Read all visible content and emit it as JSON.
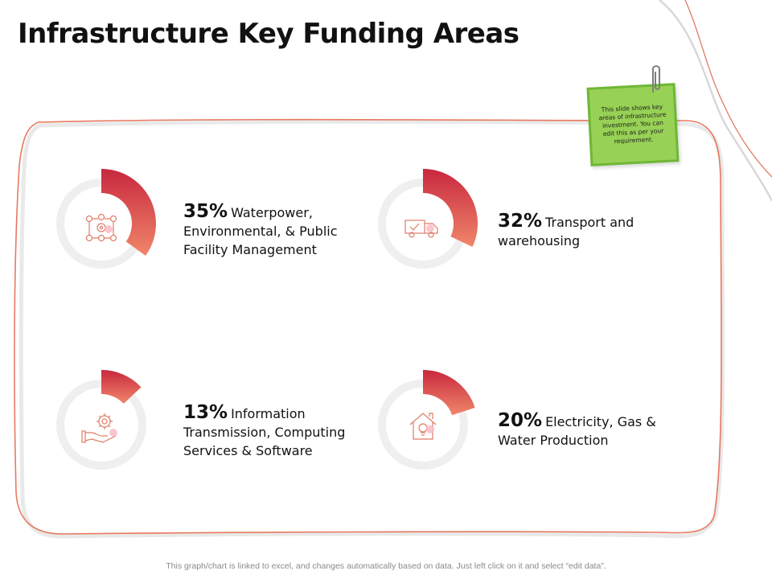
{
  "page": {
    "title": "Infrastructure Key Funding Areas"
  },
  "note": {
    "text": "This slide shows key areas of infrastructure investment. You can edit this as per your requirement."
  },
  "footer": {
    "text": "This graph/chart is linked to excel, and changes automatically based on data. Just left click on it and select “edit data”."
  },
  "colors": {
    "accent_start": "#c8283e",
    "accent_end": "#f0866a",
    "track": "#f0f0f0",
    "frame": "#e8795f",
    "note": "#97d155"
  },
  "chart_data": {
    "type": "pie",
    "title": "",
    "segments": [
      {
        "pct_label": "35%",
        "value": 35,
        "label": "Waterpower, Environmental, & Public Facility Management",
        "icon": "network-gears-icon"
      },
      {
        "pct_label": "32%",
        "value": 32,
        "label": "Transport and warehousing",
        "icon": "delivery-truck-icon"
      },
      {
        "pct_label": "13%",
        "value": 13,
        "label": "Information Transmission, Computing Services & Software",
        "icon": "hand-gear-icon"
      },
      {
        "pct_label": "20%",
        "value": 20,
        "label": "Electricity, Gas & Water Production",
        "icon": "house-bulb-icon"
      }
    ]
  }
}
